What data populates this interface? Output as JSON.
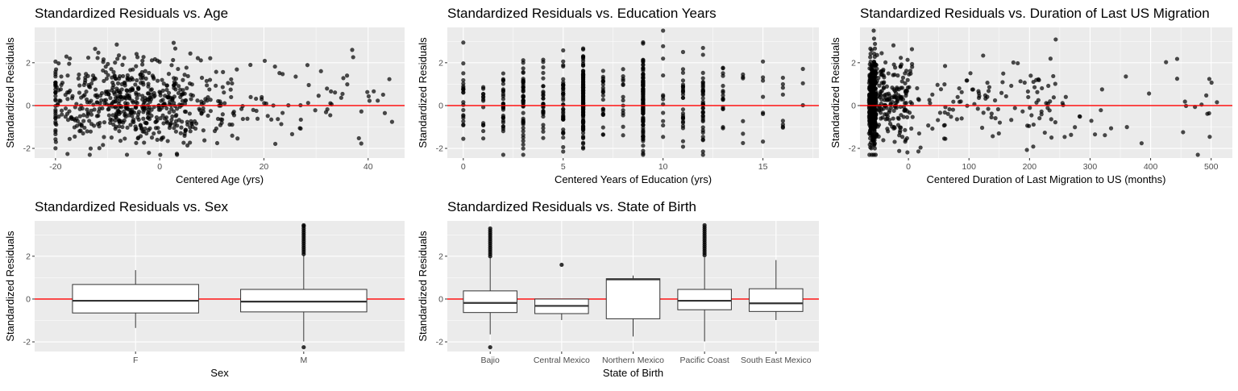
{
  "colors": {
    "panel_bg": "#ebebeb",
    "grid": "#ffffff",
    "point": "#000000",
    "ref_line": "#ff0000",
    "box_fill": "#ffffff",
    "box_stroke": "#333333"
  },
  "chart_data": [
    {
      "id": "age",
      "type": "scatter",
      "title": "Standardized Residuals vs. Age",
      "xlabel": "Centered Age (yrs)",
      "ylabel": "Standardized Residuals",
      "xlim": [
        -24,
        47
      ],
      "ylim": [
        -2.45,
        3.65
      ],
      "xticks": [
        -20,
        0,
        20,
        40
      ],
      "xtick_labels": [
        "-20",
        "0",
        "20",
        "40"
      ],
      "yticks": [
        -2,
        0,
        2
      ],
      "ytick_labels": [
        "-2",
        "0",
        "2"
      ],
      "reference_line": 0,
      "generated_points": {
        "count": 700,
        "x_range": [
          -20,
          45
        ],
        "x_center": -5,
        "y_range": [
          -2.3,
          3.5
        ]
      }
    },
    {
      "id": "education",
      "type": "scatter",
      "title": "Standardized Residuals vs. Education Years",
      "xlabel": "Centered Years of Education (yrs)",
      "ylabel": "Standardized Residuals",
      "xlim": [
        -0.8,
        17.8
      ],
      "ylim": [
        -2.45,
        3.65
      ],
      "xticks": [
        0,
        5,
        10,
        15
      ],
      "xtick_labels": [
        "0",
        "5",
        "10",
        "15"
      ],
      "yticks": [
        -2,
        0,
        2
      ],
      "ytick_labels": [
        "-2",
        "0",
        "2"
      ],
      "reference_line": 0,
      "x_levels": [
        0,
        1,
        2,
        3,
        4,
        5,
        6,
        7,
        8,
        9,
        10,
        11,
        12,
        13,
        14,
        15,
        16,
        17
      ],
      "level_counts": [
        22,
        14,
        30,
        48,
        32,
        40,
        150,
        22,
        14,
        120,
        12,
        26,
        40,
        16,
        6,
        7,
        8,
        3
      ]
    },
    {
      "id": "duration",
      "type": "scatter",
      "title": "Standardized Residuals vs. Duration of Last US Migration",
      "xlabel": "Centered Duration of Last Migration to US (months)",
      "ylabel": "Standardized Residuals",
      "xlim": [
        -80,
        535
      ],
      "ylim": [
        -2.45,
        3.65
      ],
      "xticks": [
        0,
        100,
        200,
        300,
        400,
        500
      ],
      "xtick_labels": [
        "0",
        "100",
        "200",
        "300",
        "400",
        "500"
      ],
      "yticks": [
        -2,
        0,
        2
      ],
      "ytick_labels": [
        "-2",
        "0",
        "2"
      ],
      "reference_line": 0,
      "generated_points": {
        "count": 700,
        "x_min": -65,
        "x_max": 510,
        "y_range": [
          -2.3,
          3.5
        ]
      }
    },
    {
      "id": "sex",
      "type": "box",
      "title": "Standardized Residuals vs. Sex",
      "xlabel": "Sex",
      "ylabel": "Standardized Residuals",
      "ylim": [
        -2.45,
        3.65
      ],
      "yticks": [
        -2,
        0,
        2
      ],
      "ytick_labels": [
        "-2",
        "0",
        "2"
      ],
      "reference_line": 0,
      "categories": [
        "F",
        "M"
      ],
      "boxes": [
        {
          "q1": -0.65,
          "median": -0.08,
          "q3": 0.68,
          "whisker_low": -1.35,
          "whisker_high": 1.35,
          "outliers": []
        },
        {
          "q1": -0.6,
          "median": -0.12,
          "q3": 0.45,
          "whisker_low": -1.98,
          "whisker_high": 2.05,
          "outliers": [
            -2.25,
            2.1,
            2.2,
            2.3,
            2.4,
            2.5,
            2.6,
            2.7,
            2.8,
            2.9,
            3.0,
            3.1,
            3.2,
            3.3,
            3.4,
            3.45
          ]
        }
      ]
    },
    {
      "id": "state",
      "type": "box",
      "title": "Standardized Residuals vs. State of Birth",
      "xlabel": "State of Birth",
      "ylabel": "Standardized Residuals",
      "ylim": [
        -2.45,
        3.65
      ],
      "yticks": [
        -2,
        0,
        2
      ],
      "ytick_labels": [
        "-2",
        "0",
        "2"
      ],
      "reference_line": 0,
      "categories": [
        "Bajio",
        "Central Mexico",
        "Northern Mexico",
        "Pacific Coast",
        "South East Mexico"
      ],
      "boxes": [
        {
          "q1": -0.63,
          "median": -0.18,
          "q3": 0.38,
          "whisker_low": -1.65,
          "whisker_high": 1.95,
          "outliers": [
            -2.25,
            2.0,
            2.1,
            2.2,
            2.3,
            2.4,
            2.5,
            2.6,
            2.7,
            2.8,
            2.9,
            3.0,
            3.1,
            3.2,
            3.3
          ]
        },
        {
          "q1": -0.68,
          "median": -0.32,
          "q3": 0.0,
          "whisker_low": -0.98,
          "whisker_high": 0.0,
          "outliers": [
            1.6
          ]
        },
        {
          "q1": -0.92,
          "median": 0.92,
          "q3": 0.95,
          "whisker_low": -1.75,
          "whisker_high": 1.1,
          "outliers": []
        },
        {
          "q1": -0.5,
          "median": -0.08,
          "q3": 0.45,
          "whisker_low": -1.98,
          "whisker_high": 1.95,
          "outliers": [
            2.05,
            2.15,
            2.25,
            2.35,
            2.45,
            2.55,
            2.65,
            2.75,
            2.85,
            2.95,
            3.05,
            3.15,
            3.25,
            3.35,
            3.45
          ]
        },
        {
          "q1": -0.58,
          "median": -0.2,
          "q3": 0.48,
          "whisker_low": -0.98,
          "whisker_high": 1.82,
          "outliers": []
        }
      ]
    }
  ]
}
